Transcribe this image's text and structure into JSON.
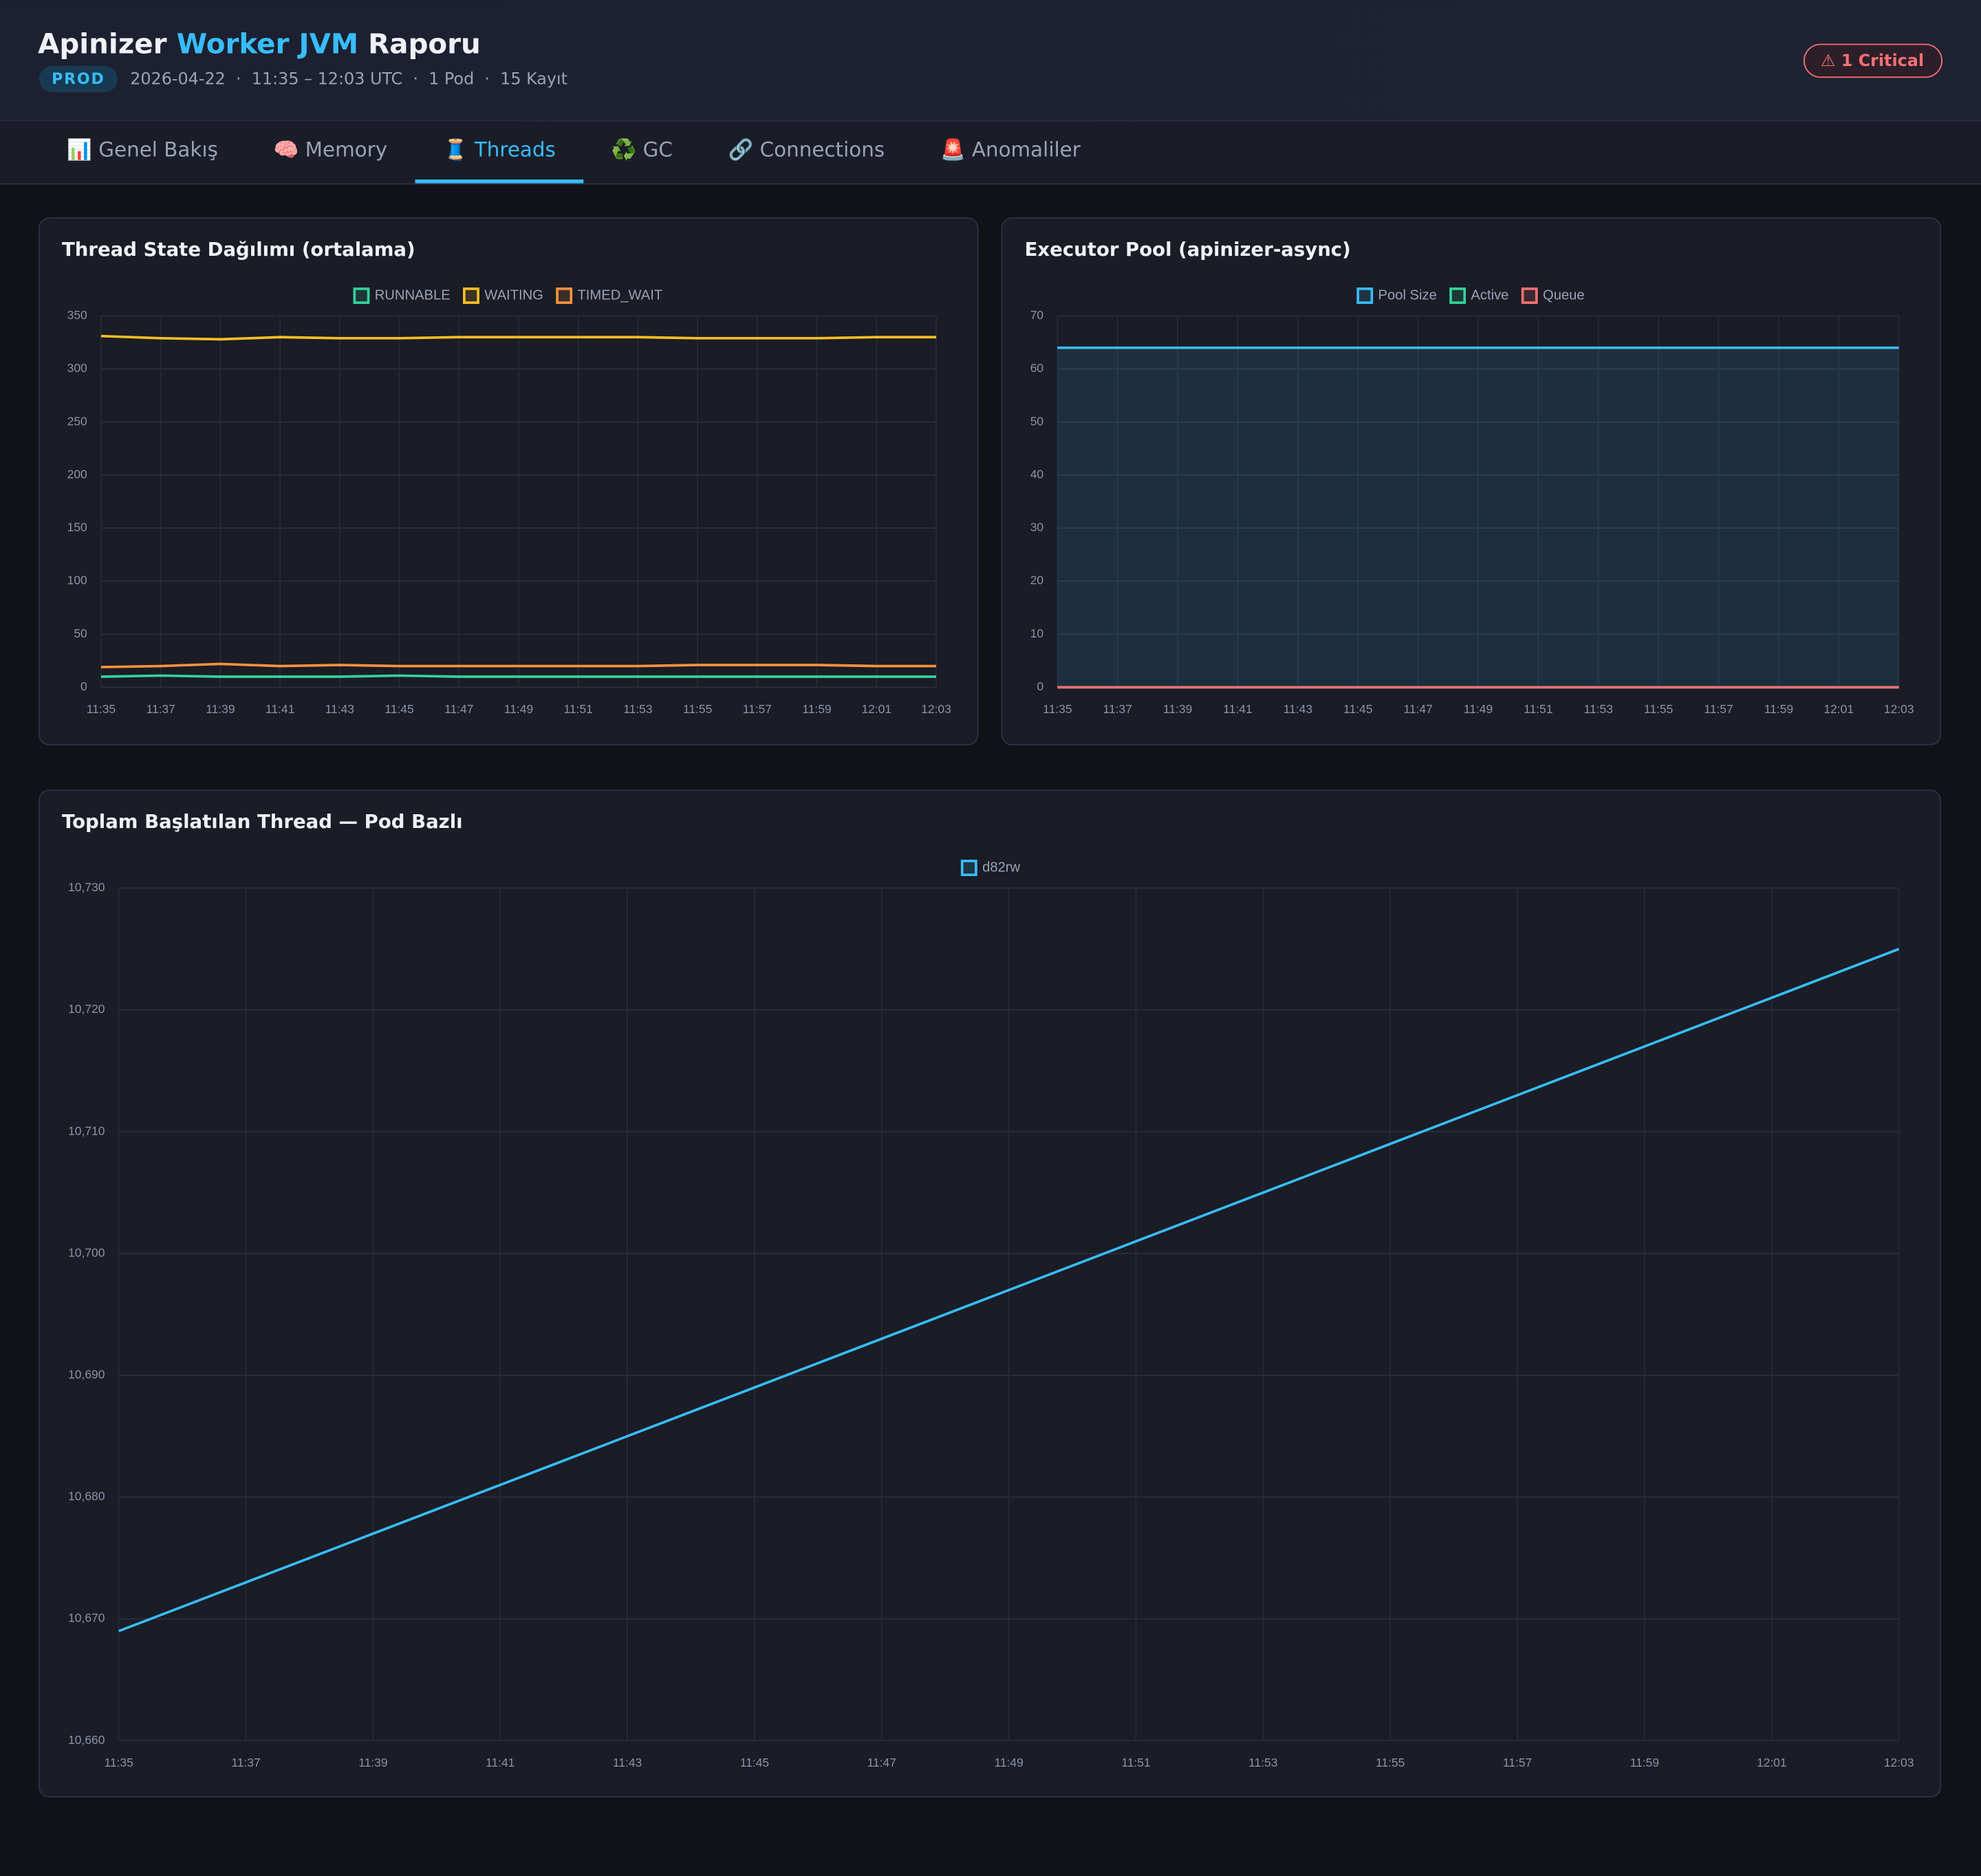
{
  "header": {
    "title": [
      "Apinizer",
      "Worker JVM",
      "Raporu"
    ],
    "env": "PROD",
    "meta": "2026-04-22  ·  11:35 – 12:03 UTC  ·  1 Pod  ·  15 Kayıt",
    "alert": "⚠ 1 Critical"
  },
  "tabs": {
    "items": [
      "📊 Genel Bakış",
      "🧠 Memory",
      "🧵 Threads",
      "♻️ GC",
      "🔗 Connections",
      "🚨 Anomaliler"
    ],
    "active": 2
  },
  "chart_data": [
    {
      "type": "line",
      "title": "Thread State Dağılımı (ortalama)",
      "categories": [
        "11:35",
        "11:37",
        "11:39",
        "11:41",
        "11:43",
        "11:45",
        "11:47",
        "11:49",
        "11:51",
        "11:53",
        "11:55",
        "11:57",
        "11:59",
        "12:01",
        "12:03"
      ],
      "series": [
        {
          "name": "RUNNABLE",
          "color": "#34d399",
          "values": [
            10,
            11,
            10,
            10,
            10,
            11,
            10,
            10,
            10,
            10,
            10,
            10,
            10,
            10,
            10
          ]
        },
        {
          "name": "WAITING",
          "color": "#fbbf24",
          "values": [
            331,
            329,
            328,
            330,
            329,
            329,
            330,
            330,
            330,
            330,
            329,
            329,
            329,
            330,
            330
          ]
        },
        {
          "name": "TIMED_WAIT",
          "color": "#fb923c",
          "values": [
            19,
            20,
            22,
            20,
            21,
            20,
            20,
            20,
            20,
            20,
            21,
            21,
            21,
            20,
            20
          ]
        }
      ],
      "ylim": [
        0,
        350
      ],
      "yticks": [
        0,
        50,
        100,
        150,
        200,
        250,
        300,
        350
      ],
      "grid": true
    },
    {
      "type": "line",
      "title": "Executor Pool (apinizer-async)",
      "categories": [
        "11:35",
        "11:37",
        "11:39",
        "11:41",
        "11:43",
        "11:45",
        "11:47",
        "11:49",
        "11:51",
        "11:53",
        "11:55",
        "11:57",
        "11:59",
        "12:01",
        "12:03"
      ],
      "series": [
        {
          "name": "Pool Size",
          "color": "#38bdf8",
          "fill": true,
          "values": [
            64,
            64,
            64,
            64,
            64,
            64,
            64,
            64,
            64,
            64,
            64,
            64,
            64,
            64,
            64
          ]
        },
        {
          "name": "Active",
          "color": "#34d399",
          "values": [
            0,
            0,
            0,
            0,
            0,
            0,
            0,
            0,
            0,
            0,
            0,
            0,
            0,
            0,
            0
          ]
        },
        {
          "name": "Queue",
          "color": "#f87171",
          "values": [
            0,
            0,
            0,
            0,
            0,
            0,
            0,
            0,
            0,
            0,
            0,
            0,
            0,
            0,
            0
          ]
        }
      ],
      "ylim": [
        0,
        70
      ],
      "yticks": [
        0,
        10,
        20,
        30,
        40,
        50,
        60,
        70
      ],
      "grid": true
    },
    {
      "type": "line",
      "title": "Toplam Başlatılan Thread — Pod Bazlı",
      "categories": [
        "11:35",
        "11:37",
        "11:39",
        "11:41",
        "11:43",
        "11:45",
        "11:47",
        "11:49",
        "11:51",
        "11:53",
        "11:55",
        "11:57",
        "11:59",
        "12:01",
        "12:03"
      ],
      "series": [
        {
          "name": "d82rw",
          "color": "#38bdf8",
          "values": [
            10669,
            10673,
            10677,
            10681,
            10685,
            10689,
            10693,
            10697,
            10701,
            10705,
            10709,
            10713,
            10717,
            10721,
            10725
          ]
        }
      ],
      "ylim": [
        10660,
        10730
      ],
      "yticks": [
        {
          "value": 10660,
          "label": "10,660"
        },
        {
          "value": 10670,
          "label": "10,670"
        },
        {
          "value": 10680,
          "label": "10,680"
        },
        {
          "value": 10690,
          "label": "10,690"
        },
        {
          "value": 10700,
          "label": "10,700"
        },
        {
          "value": 10710,
          "label": "10,710"
        },
        {
          "value": 10720,
          "label": "10,720"
        },
        {
          "value": 10730,
          "label": "10,730"
        }
      ],
      "grid": true
    }
  ]
}
